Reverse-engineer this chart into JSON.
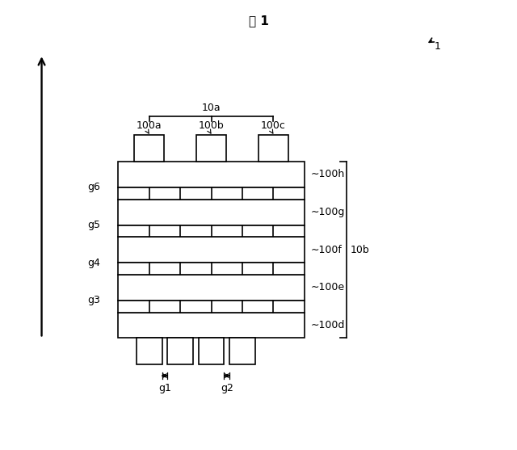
{
  "title": "図 1",
  "bg_color": "#ffffff",
  "fig_label": "1",
  "label_10a": "10a",
  "label_10b": "10b",
  "label_100a": "100a",
  "label_100b": "100b",
  "label_100c": "100c",
  "label_100d": "100d",
  "label_100e": "100e",
  "label_100f": "100f",
  "label_100g": "100g",
  "label_100h": "100h",
  "label_g1": "g1",
  "label_g2": "g2",
  "label_g3": "g3",
  "label_g4": "g4",
  "label_g5": "g5",
  "label_g6": "g6",
  "line_color": "#000000",
  "font_size": 9
}
